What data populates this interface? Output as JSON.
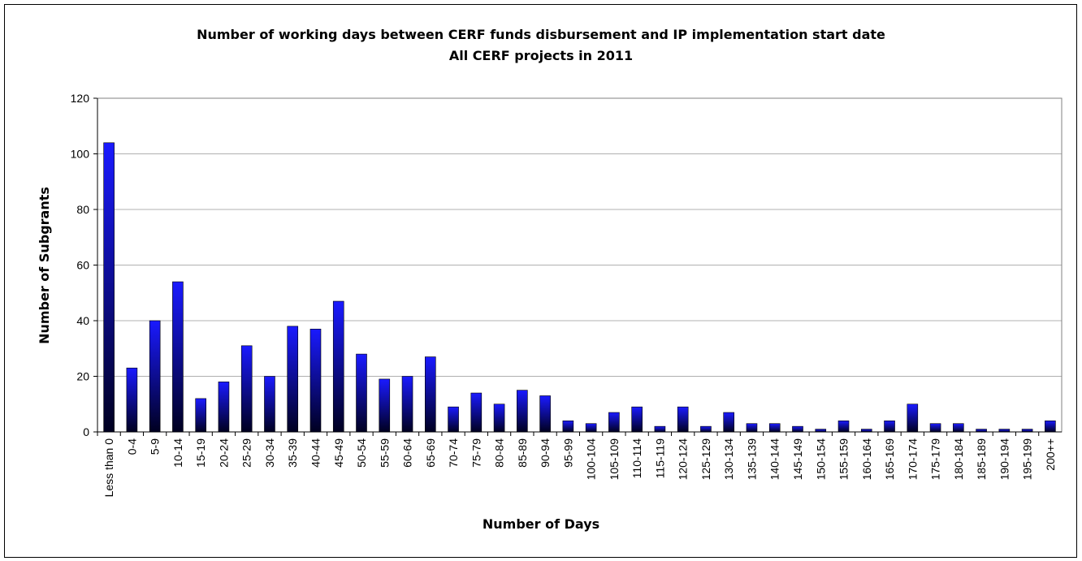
{
  "chart_data": {
    "type": "bar",
    "title": "Number of working days between CERF funds disbursement and IP implementation start date",
    "subtitle": "All CERF projects in 2011",
    "x_label": "Number of Days",
    "y_label": "Number of Subgrants",
    "categories": [
      "Less than 0",
      "0-4",
      "5-9",
      "10-14",
      "15-19",
      "20-24",
      "25-29",
      "30-34",
      "35-39",
      "40-44",
      "45-49",
      "50-54",
      "55-59",
      "60-64",
      "65-69",
      "70-74",
      "75-79",
      "80-84",
      "85-89",
      "90-94",
      "95-99",
      "100-104",
      "105-109",
      "110-114",
      "115-119",
      "120-124",
      "125-129",
      "130-134",
      "135-139",
      "140-144",
      "145-149",
      "150-154",
      "155-159",
      "160-164",
      "165-169",
      "170-174",
      "175-179",
      "180-184",
      "185-189",
      "190-194",
      "195-199",
      "200++"
    ],
    "values": [
      104,
      23,
      40,
      54,
      12,
      18,
      31,
      20,
      38,
      37,
      47,
      28,
      19,
      20,
      27,
      9,
      14,
      10,
      15,
      13,
      4,
      3,
      7,
      9,
      2,
      9,
      2,
      7,
      3,
      3,
      2,
      1,
      4,
      1,
      4,
      10,
      3,
      3,
      1,
      1,
      1,
      4
    ],
    "color": "#1a1aff",
    "ylim": [
      0,
      120
    ],
    "yticks": [
      0,
      20,
      40,
      60,
      80,
      100,
      120
    ],
    "grid": true
  }
}
